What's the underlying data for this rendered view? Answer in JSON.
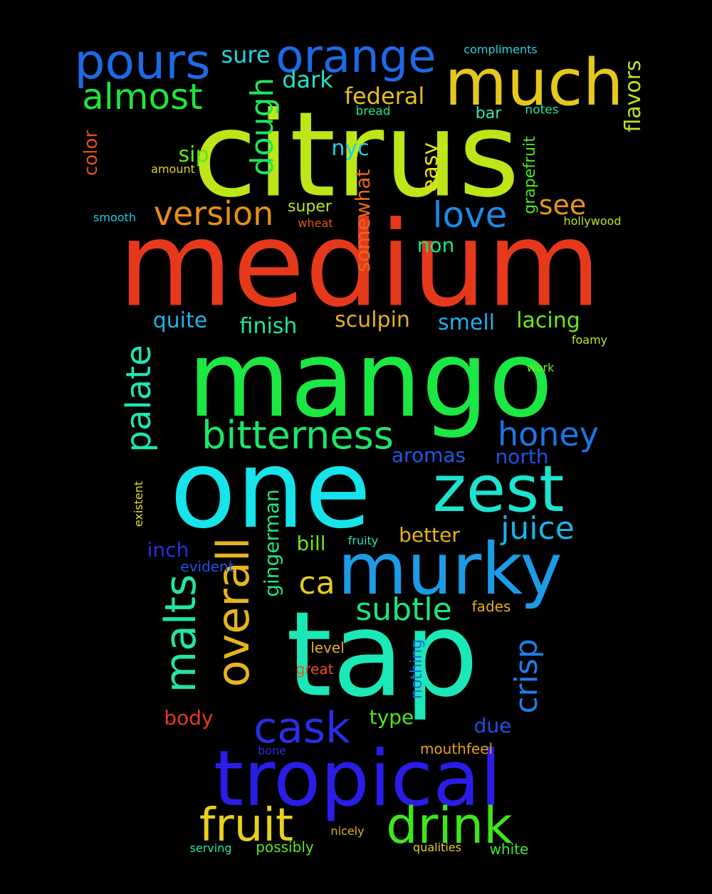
{
  "words": [
    {
      "text": "citrus",
      "color": "#bde619",
      "rotated": false
    },
    {
      "text": "medium",
      "color": "#e6391c",
      "rotated": false
    },
    {
      "text": "mango",
      "color": "#1ce843",
      "rotated": false
    },
    {
      "text": "one",
      "color": "#16e3ea",
      "rotated": false
    },
    {
      "text": "tap",
      "color": "#1be7b7",
      "rotated": false
    },
    {
      "text": "much",
      "color": "#e5c81b",
      "rotated": false
    },
    {
      "text": "murky",
      "color": "#1c9be6",
      "rotated": false
    },
    {
      "text": "tropical",
      "color": "#2a1de8",
      "rotated": false
    },
    {
      "text": "zest",
      "color": "#1de3cf",
      "rotated": false
    },
    {
      "text": "orange",
      "color": "#1d6ae6",
      "rotated": false
    },
    {
      "text": "pours",
      "color": "#1d6ae6",
      "rotated": false
    },
    {
      "text": "overall",
      "color": "#e6b41c",
      "rotated": true
    },
    {
      "text": "drink",
      "color": "#3ee61a",
      "rotated": false
    },
    {
      "text": "fruit",
      "color": "#e6d01b",
      "rotated": false
    },
    {
      "text": "cask",
      "color": "#2a2de6",
      "rotated": false
    },
    {
      "text": "malts",
      "color": "#21e69f",
      "rotated": true
    },
    {
      "text": "bitterness",
      "color": "#1be66a",
      "rotated": false
    },
    {
      "text": "version",
      "color": "#e68e1b",
      "rotated": false
    },
    {
      "text": "almost",
      "color": "#1ee63c",
      "rotated": false
    },
    {
      "text": "love",
      "color": "#1c8ae6",
      "rotated": false
    },
    {
      "text": "honey",
      "color": "#1d75e6",
      "rotated": false
    },
    {
      "text": "palate",
      "color": "#1ee6b4",
      "rotated": true
    },
    {
      "text": "juice",
      "color": "#1ab4e6",
      "rotated": false
    },
    {
      "text": "subtle",
      "color": "#1de67a",
      "rotated": false
    },
    {
      "text": "crisp",
      "color": "#1f7ee6",
      "rotated": true
    },
    {
      "text": "ca",
      "color": "#e6cc1c",
      "rotated": false
    },
    {
      "text": "dough",
      "color": "#1ee65a",
      "rotated": true
    },
    {
      "text": "see",
      "color": "#e6961b",
      "rotated": false
    },
    {
      "text": "federal",
      "color": "#e6c01b",
      "rotated": false
    },
    {
      "text": "flavors",
      "color": "#bfe31c",
      "rotated": true
    },
    {
      "text": "dark",
      "color": "#1de3c9",
      "rotated": false
    },
    {
      "text": "sure",
      "color": "#1dd6e3",
      "rotated": false
    },
    {
      "text": "sculpin",
      "color": "#e6b01d",
      "rotated": false
    },
    {
      "text": "smell",
      "color": "#1eb0e6",
      "rotated": false
    },
    {
      "text": "lacing",
      "color": "#6ee61d",
      "rotated": false
    },
    {
      "text": "finish",
      "color": "#1be69c",
      "rotated": false
    },
    {
      "text": "quite",
      "color": "#1eb4e6",
      "rotated": false
    },
    {
      "text": "nyc",
      "color": "#1ed0e6",
      "rotated": false
    },
    {
      "text": "sip",
      "color": "#5ee61c",
      "rotated": false
    },
    {
      "text": "easy",
      "color": "#e6de1c",
      "rotated": true
    },
    {
      "text": "somewhat",
      "color": "#e6681d",
      "rotated": true
    },
    {
      "text": "non",
      "color": "#1de68a",
      "rotated": false
    },
    {
      "text": "gingerman",
      "color": "#1ee67d",
      "rotated": true
    },
    {
      "text": "better",
      "color": "#e6b01c",
      "rotated": false
    },
    {
      "text": "north",
      "color": "#1c52e6",
      "rotated": false
    },
    {
      "text": "aromas",
      "color": "#1d5ae6",
      "rotated": false
    },
    {
      "text": "bill",
      "color": "#68e61b",
      "rotated": false
    },
    {
      "text": "inch",
      "color": "#2a2de6",
      "rotated": false
    },
    {
      "text": "body",
      "color": "#e6391c",
      "rotated": false
    },
    {
      "text": "type",
      "color": "#4fe61c",
      "rotated": false
    },
    {
      "text": "due",
      "color": "#1c4fe6",
      "rotated": false
    },
    {
      "text": "color",
      "color": "#e6501c",
      "rotated": true
    },
    {
      "text": "bar",
      "color": "#3ce6b0",
      "rotated": false
    },
    {
      "text": "super",
      "color": "#bce61c",
      "rotated": false
    },
    {
      "text": "grapefruit",
      "color": "#4ae61c",
      "rotated": true
    },
    {
      "text": "nothing",
      "color": "#1d6ae6",
      "rotated": true
    },
    {
      "text": "mouthfeel",
      "color": "#e6a01b",
      "rotated": false
    },
    {
      "text": "fades",
      "color": "#e6b01b",
      "rotated": false
    },
    {
      "text": "level",
      "color": "#e6b01b",
      "rotated": false
    },
    {
      "text": "great",
      "color": "#e6501c",
      "rotated": false
    },
    {
      "text": "possibly",
      "color": "#5de61b",
      "rotated": false
    },
    {
      "text": "white",
      "color": "#3ee63a",
      "rotated": false
    },
    {
      "text": "evident",
      "color": "#1c52e6",
      "rotated": false
    },
    {
      "text": "bread",
      "color": "#1de68a",
      "rotated": false
    },
    {
      "text": "notes",
      "color": "#1ee6a0",
      "rotated": false
    },
    {
      "text": "compliments",
      "color": "#1dd6e3",
      "rotated": false
    },
    {
      "text": "amount",
      "color": "#e6d01c",
      "rotated": false
    },
    {
      "text": "smooth",
      "color": "#1ec8e6",
      "rotated": false
    },
    {
      "text": "wheat",
      "color": "#e6501c",
      "rotated": false
    },
    {
      "text": "hollywood",
      "color": "#bde619",
      "rotated": false
    },
    {
      "text": "foamy",
      "color": "#bde619",
      "rotated": false
    },
    {
      "text": "work",
      "color": "#7ee61d",
      "rotated": false
    },
    {
      "text": "existent",
      "color": "#e6de1c",
      "rotated": true
    },
    {
      "text": "fruity",
      "color": "#1ee6b4",
      "rotated": false
    },
    {
      "text": "bone",
      "color": "#2a2de6",
      "rotated": false
    },
    {
      "text": "nicely",
      "color": "#e6b01b",
      "rotated": false
    },
    {
      "text": "serving",
      "color": "#1ee6b4",
      "rotated": false
    },
    {
      "text": "qualities",
      "color": "#e6d01c",
      "rotated": false
    }
  ]
}
